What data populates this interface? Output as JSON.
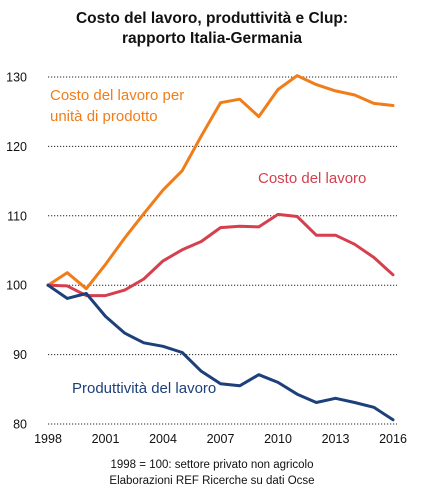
{
  "chart_data": {
    "type": "line",
    "title_lines": [
      "Costo del lavoro, produttività e Clup:",
      "rapporto Italia-Germania"
    ],
    "x": [
      1998,
      1999,
      2000,
      2001,
      2002,
      2003,
      2004,
      2005,
      2006,
      2007,
      2008,
      2009,
      2010,
      2011,
      2012,
      2013,
      2014,
      2015,
      2016
    ],
    "x_tick_labels": [
      "1998",
      "2001",
      "2004",
      "2007",
      "2010",
      "2013",
      "2016"
    ],
    "y_tick_labels": [
      "80",
      "90",
      "100",
      "110",
      "120",
      "130"
    ],
    "ylim": [
      80,
      130
    ],
    "xlim": [
      1998,
      2016
    ],
    "grid": "horizontal dotted",
    "series": [
      {
        "name": "Costo del lavoro per unità di prodotto",
        "label_lines": [
          "Costo del lavoro per",
          "unità di prodotto"
        ],
        "color": "#f07d1a",
        "values": [
          100.0,
          101.8,
          99.5,
          103.0,
          106.8,
          110.3,
          113.7,
          116.5,
          121.5,
          126.3,
          126.8,
          124.3,
          128.2,
          130.2,
          128.9,
          128.0,
          127.4,
          126.2,
          125.9
        ]
      },
      {
        "name": "Costo del lavoro",
        "label_lines": [
          "Costo del lavoro"
        ],
        "color": "#d63f4e",
        "values": [
          100.0,
          99.9,
          98.5,
          98.5,
          99.3,
          100.9,
          103.5,
          105.1,
          106.3,
          108.3,
          108.5,
          108.4,
          110.2,
          109.9,
          107.2,
          107.2,
          105.9,
          104.0,
          101.5
        ]
      },
      {
        "name": "Produttività del lavoro",
        "label_lines": [
          "Produttività del lavoro"
        ],
        "color": "#1d3f7a",
        "values": [
          100.0,
          98.1,
          98.8,
          95.5,
          93.1,
          91.7,
          91.2,
          90.3,
          87.6,
          85.8,
          85.5,
          87.1,
          86.0,
          84.3,
          83.1,
          83.7,
          83.1,
          82.4,
          80.6
        ]
      }
    ],
    "notes": [
      "1998 = 100: settore privato non agricolo",
      "Elaborazioni REF Ricerche su dati Ocse"
    ]
  }
}
